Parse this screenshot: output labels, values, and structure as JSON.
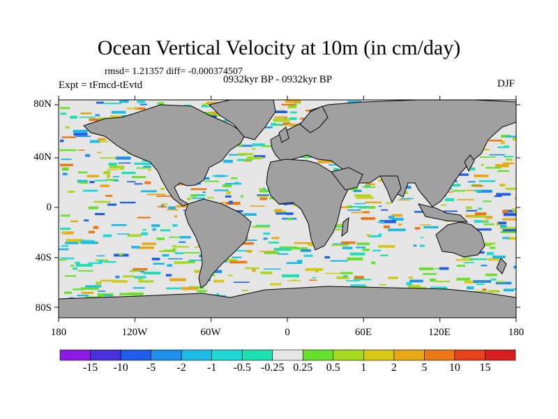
{
  "title": "Ocean Vertical Velocity at 10m (in cm/day)",
  "stats": "rmsd= 1.21357 diff= -0.000374507",
  "experiment": "Expt = tFmcd-tEvtd",
  "period": "0932kyr BP - 0932kyr BP",
  "season": "DJF",
  "lat_labels": [
    "80N",
    "40N",
    "0",
    "40S",
    "80S"
  ],
  "lon_labels": [
    "180",
    "120W",
    "60W",
    "0",
    "60E",
    "120E",
    "180"
  ],
  "colorbar": {
    "labels": [
      "-15",
      "-10",
      "-5",
      "-2",
      "-1",
      "-0.5",
      "-0.25",
      "0.25",
      "0.5",
      "1",
      "2",
      "5",
      "10",
      "15"
    ],
    "colors": [
      "#8c1ae0",
      "#4a30d8",
      "#1e5ee6",
      "#1e90ea",
      "#1ebae6",
      "#20d8d4",
      "#1ee0b0",
      "#e6e6e6",
      "#66e02a",
      "#a6d81e",
      "#d6c814",
      "#e6a814",
      "#ea7814",
      "#e6421e",
      "#d81e1e"
    ]
  },
  "colors": {
    "land": "#a0a0a0",
    "ocean_background": "#e6e6e6",
    "coastline": "#000000"
  }
}
